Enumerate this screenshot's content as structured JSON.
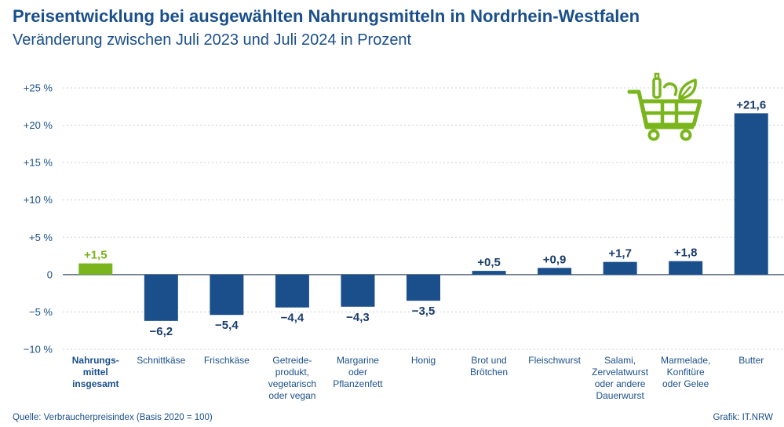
{
  "header": {
    "title": "Preisentwicklung bei ausgewählten Nahrungsmitteln in Nordrhein-Westfalen",
    "subtitle": "Veränderung zwischen Juli 2023 und Juli 2024 in Prozent"
  },
  "footer": {
    "source": "Quelle: Verbraucherpreisindex (Basis 2020 = 100)",
    "credit": "Grafik: IT.NRW"
  },
  "colors": {
    "highlight": "#7ab51d",
    "bar": "#1a4f8b",
    "grid": "#c9cfd8",
    "text": "#1a4f8b",
    "cart_icon": "#7ab51d"
  },
  "icon": "shopping-cart-icon",
  "chart_data": {
    "type": "bar",
    "categories": [
      [
        "Nahrungs-",
        "mittel",
        "insgesamt"
      ],
      [
        "Schnittkäse"
      ],
      [
        "Frischkäse"
      ],
      [
        "Getreide-",
        "produkt,",
        "vegetarisch",
        "oder vegan"
      ],
      [
        "Margarine",
        "oder",
        "Pflanzenfett"
      ],
      [
        "Honig"
      ],
      [
        "Brot und",
        "Brötchen"
      ],
      [
        "Fleischwurst"
      ],
      [
        "Salami,",
        "Zervelatwurst",
        "oder andere",
        "Dauerwurst"
      ],
      [
        "Marmelade,",
        "Konfitüre",
        "oder Gelee"
      ],
      [
        "Butter"
      ]
    ],
    "values": [
      1.5,
      -6.2,
      -5.4,
      -4.4,
      -4.3,
      -3.5,
      0.5,
      0.9,
      1.7,
      1.8,
      21.6
    ],
    "value_labels": [
      "+1,5",
      "−6,2",
      "−5,4",
      "−4,4",
      "−4,3",
      "−3,5",
      "+0,5",
      "+0,9",
      "+1,7",
      "+1,8",
      "+21,6"
    ],
    "highlight_index": 0,
    "yticks": [
      -10,
      -5,
      0,
      5,
      10,
      15,
      20,
      25
    ],
    "ytick_labels": [
      "−10 %",
      "−5 %",
      "0",
      "+5 %",
      "+10 %",
      "+15 %",
      "+20 %",
      "+25 %"
    ],
    "ylim": [
      -10,
      25
    ],
    "grid": true
  }
}
